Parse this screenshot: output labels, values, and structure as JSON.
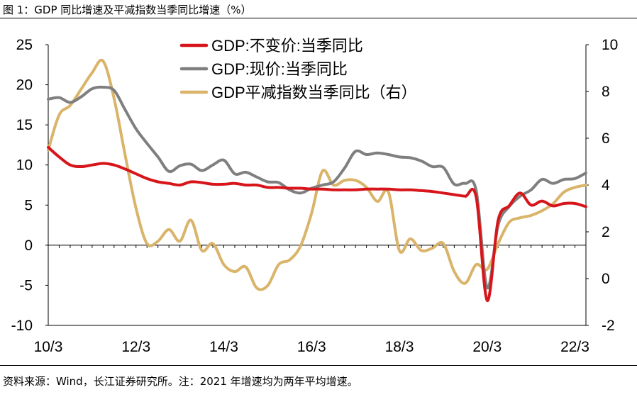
{
  "figure": {
    "title": "图 1：GDP 同比增速及平减指数当季同比增速（%）",
    "note": "资料来源：Wind，长江证券研究所。注：2021 年增速均为两年平均增速。"
  },
  "chart_data": {
    "type": "line",
    "x_ticks": [
      "10/3",
      "12/3",
      "14/3",
      "16/3",
      "18/3",
      "20/3",
      "22/3"
    ],
    "x_range": [
      2010.0,
      2022.25
    ],
    "y_left": {
      "range": [
        -10,
        25
      ],
      "ticks": [
        "25",
        "20",
        "15",
        "10",
        "5",
        "0",
        "-5",
        "-10"
      ],
      "tick_values": [
        25,
        20,
        15,
        10,
        5,
        0,
        -5,
        -10
      ]
    },
    "y_right": {
      "range": [
        -2,
        10
      ],
      "ticks": [
        "10",
        "8",
        "6",
        "4",
        "2",
        "0",
        "-2"
      ],
      "tick_values": [
        10,
        8,
        6,
        4,
        2,
        0,
        -2
      ]
    },
    "colors": {
      "real": "#d7161b",
      "nominal": "#7f7f7f",
      "deflator": "#d9b46a"
    },
    "series": [
      {
        "name": "GDP:不变价:当季同比",
        "axis": "left",
        "color": "#d7161b",
        "x": [
          2010.0,
          2010.25,
          2010.5,
          2010.75,
          2011.0,
          2011.25,
          2011.5,
          2011.75,
          2012.0,
          2012.25,
          2012.5,
          2012.75,
          2013.0,
          2013.25,
          2013.5,
          2013.75,
          2014.0,
          2014.25,
          2014.5,
          2014.75,
          2015.0,
          2015.25,
          2015.5,
          2015.75,
          2016.0,
          2016.25,
          2016.5,
          2016.75,
          2017.0,
          2017.25,
          2017.5,
          2017.75,
          2018.0,
          2018.25,
          2018.5,
          2018.75,
          2019.0,
          2019.25,
          2019.5,
          2019.75,
          2020.0,
          2020.25,
          2020.5,
          2020.75,
          2021.0,
          2021.25,
          2021.5,
          2021.75,
          2022.0,
          2022.25
        ],
        "values": [
          12.2,
          11.0,
          10.0,
          9.8,
          10.0,
          10.2,
          10.0,
          9.5,
          8.9,
          8.3,
          7.9,
          7.7,
          7.5,
          7.9,
          7.8,
          7.6,
          7.6,
          7.7,
          7.5,
          7.5,
          7.2,
          7.2,
          7.1,
          7.1,
          7.0,
          7.0,
          6.9,
          6.9,
          6.9,
          7.0,
          7.0,
          7.0,
          6.9,
          6.9,
          6.8,
          6.7,
          6.5,
          6.3,
          6.1,
          6.0,
          -6.9,
          3.1,
          4.9,
          6.5,
          5.0,
          5.5,
          4.9,
          5.2,
          5.2,
          4.8
        ]
      },
      {
        "name": "GDP:现价:当季同比",
        "axis": "left",
        "color": "#7f7f7f",
        "x": [
          2010.0,
          2010.25,
          2010.5,
          2010.75,
          2011.0,
          2011.25,
          2011.5,
          2011.75,
          2012.0,
          2012.25,
          2012.5,
          2012.75,
          2013.0,
          2013.25,
          2013.5,
          2013.75,
          2014.0,
          2014.25,
          2014.5,
          2014.75,
          2015.0,
          2015.25,
          2015.5,
          2015.75,
          2016.0,
          2016.25,
          2016.5,
          2016.75,
          2017.0,
          2017.25,
          2017.5,
          2017.75,
          2018.0,
          2018.25,
          2018.5,
          2018.75,
          2019.0,
          2019.25,
          2019.5,
          2019.75,
          2020.0,
          2020.25,
          2020.5,
          2020.75,
          2021.0,
          2021.25,
          2021.5,
          2021.75,
          2022.0,
          2022.25
        ],
        "values": [
          18.2,
          18.4,
          17.8,
          18.5,
          19.5,
          19.7,
          19.3,
          16.9,
          14.5,
          12.7,
          11.0,
          9.2,
          9.9,
          10.1,
          9.3,
          10.0,
          10.6,
          8.9,
          9.1,
          8.5,
          7.9,
          7.8,
          6.9,
          6.5,
          7.1,
          7.5,
          7.9,
          9.6,
          11.7,
          11.3,
          11.5,
          11.3,
          11.0,
          10.9,
          10.5,
          9.8,
          9.7,
          7.6,
          7.7,
          6.8,
          -5.3,
          2.5,
          4.8,
          6.1,
          6.9,
          8.2,
          7.7,
          8.2,
          8.3,
          9.0
        ]
      },
      {
        "name": "GDP平减指数当季同比（右）",
        "axis": "right",
        "color": "#d9b46a",
        "x": [
          2010.0,
          2010.25,
          2010.5,
          2010.75,
          2011.0,
          2011.25,
          2011.5,
          2011.75,
          2012.0,
          2012.25,
          2012.5,
          2012.75,
          2013.0,
          2013.25,
          2013.5,
          2013.75,
          2014.0,
          2014.25,
          2014.5,
          2014.75,
          2015.0,
          2015.25,
          2015.5,
          2015.75,
          2016.0,
          2016.25,
          2016.5,
          2016.75,
          2017.0,
          2017.25,
          2017.5,
          2017.75,
          2018.0,
          2018.25,
          2018.5,
          2018.75,
          2019.0,
          2019.25,
          2019.5,
          2019.75,
          2020.0,
          2020.25,
          2020.5,
          2020.75,
          2021.0,
          2021.25,
          2021.5,
          2021.75,
          2022.0,
          2022.25
        ],
        "values": [
          5.5,
          7.0,
          7.4,
          8.1,
          8.8,
          9.3,
          7.7,
          5.3,
          3.0,
          1.5,
          1.6,
          2.1,
          1.6,
          2.5,
          1.2,
          1.5,
          0.6,
          0.3,
          0.5,
          -0.4,
          -0.3,
          0.6,
          0.8,
          1.4,
          2.8,
          4.6,
          4.0,
          4.2,
          4.2,
          3.9,
          3.3,
          3.7,
          1.2,
          1.7,
          1.2,
          1.3,
          1.5,
          0.3,
          -0.2,
          0.6,
          0.4,
          1.5,
          2.4,
          2.6,
          2.7,
          2.9,
          3.2,
          3.7,
          3.9,
          4.0
        ]
      }
    ]
  }
}
